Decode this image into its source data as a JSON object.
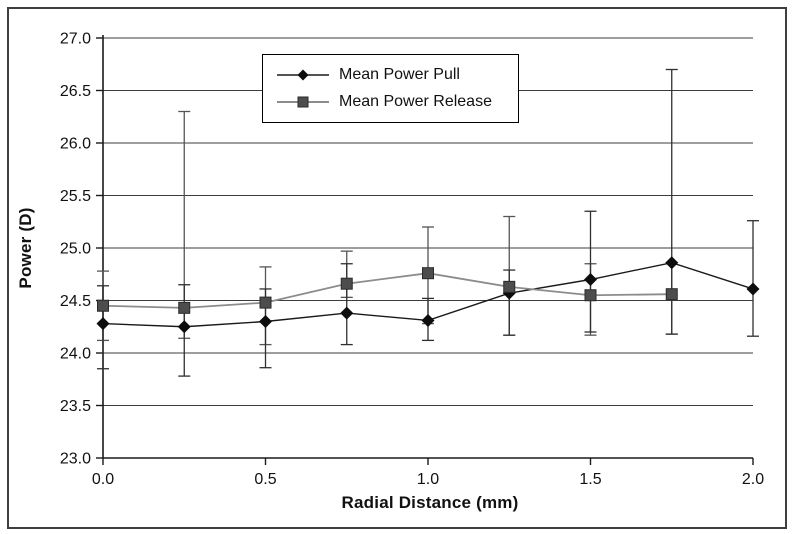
{
  "figure": {
    "background_color": "#ffffff",
    "border_color": "#3f3f3f"
  },
  "chart_data": {
    "type": "line",
    "title": "",
    "xlabel": "Radial Distance (mm)",
    "ylabel": "Power (D)",
    "xlim": [
      0.0,
      2.0
    ],
    "ylim": [
      23.0,
      27.0
    ],
    "y_tick_step": 0.5,
    "y_tick_labels": [
      "27.0",
      "26.5",
      "26.0",
      "25.5",
      "25.0",
      "24.5",
      "24.0",
      "23.5",
      "23.0"
    ],
    "x_tick_values": [
      0.0,
      0.5,
      1.0,
      1.5,
      2.0
    ],
    "x_tick_labels": [
      "0.0",
      "0.5",
      "1.0",
      "1.5",
      "2.0"
    ],
    "grid": "horizontal-only",
    "grid_color": "#3c3c3c",
    "axis_color": "#1a1a1a",
    "legend_position": "top-center",
    "series": [
      {
        "name": "Mean Power Pull",
        "marker": "diamond",
        "line_color": "#1a1a1a",
        "marker_color": "#0d0d0d",
        "error_color": "#2f2f2f",
        "x": [
          0.0,
          0.25,
          0.5,
          0.75,
          1.0,
          1.25,
          1.5,
          1.75,
          2.0
        ],
        "y": [
          24.28,
          24.25,
          24.3,
          24.38,
          24.31,
          24.57,
          24.7,
          24.86,
          24.61
        ],
        "y_high": [
          24.64,
          24.65,
          24.61,
          24.85,
          24.52,
          24.79,
          25.35,
          26.7,
          25.26
        ],
        "y_low": [
          23.85,
          23.78,
          23.86,
          24.08,
          24.12,
          24.17,
          24.2,
          24.18,
          24.16
        ]
      },
      {
        "name": "Mean Power Release",
        "marker": "square",
        "line_color": "#8c8c8c",
        "marker_color": "#4d4d4d",
        "error_color": "#555555",
        "x": [
          0.0,
          0.25,
          0.5,
          0.75,
          1.0,
          1.25,
          1.5,
          1.75
        ],
        "y": [
          24.45,
          24.43,
          24.48,
          24.66,
          24.76,
          24.63,
          24.55,
          24.56
        ],
        "y_high": [
          24.78,
          26.3,
          24.82,
          24.97,
          25.2,
          25.3,
          24.85,
          24.86
        ],
        "y_low": [
          24.12,
          24.14,
          24.08,
          24.53,
          24.28,
          24.17,
          24.17,
          24.18
        ]
      }
    ]
  }
}
